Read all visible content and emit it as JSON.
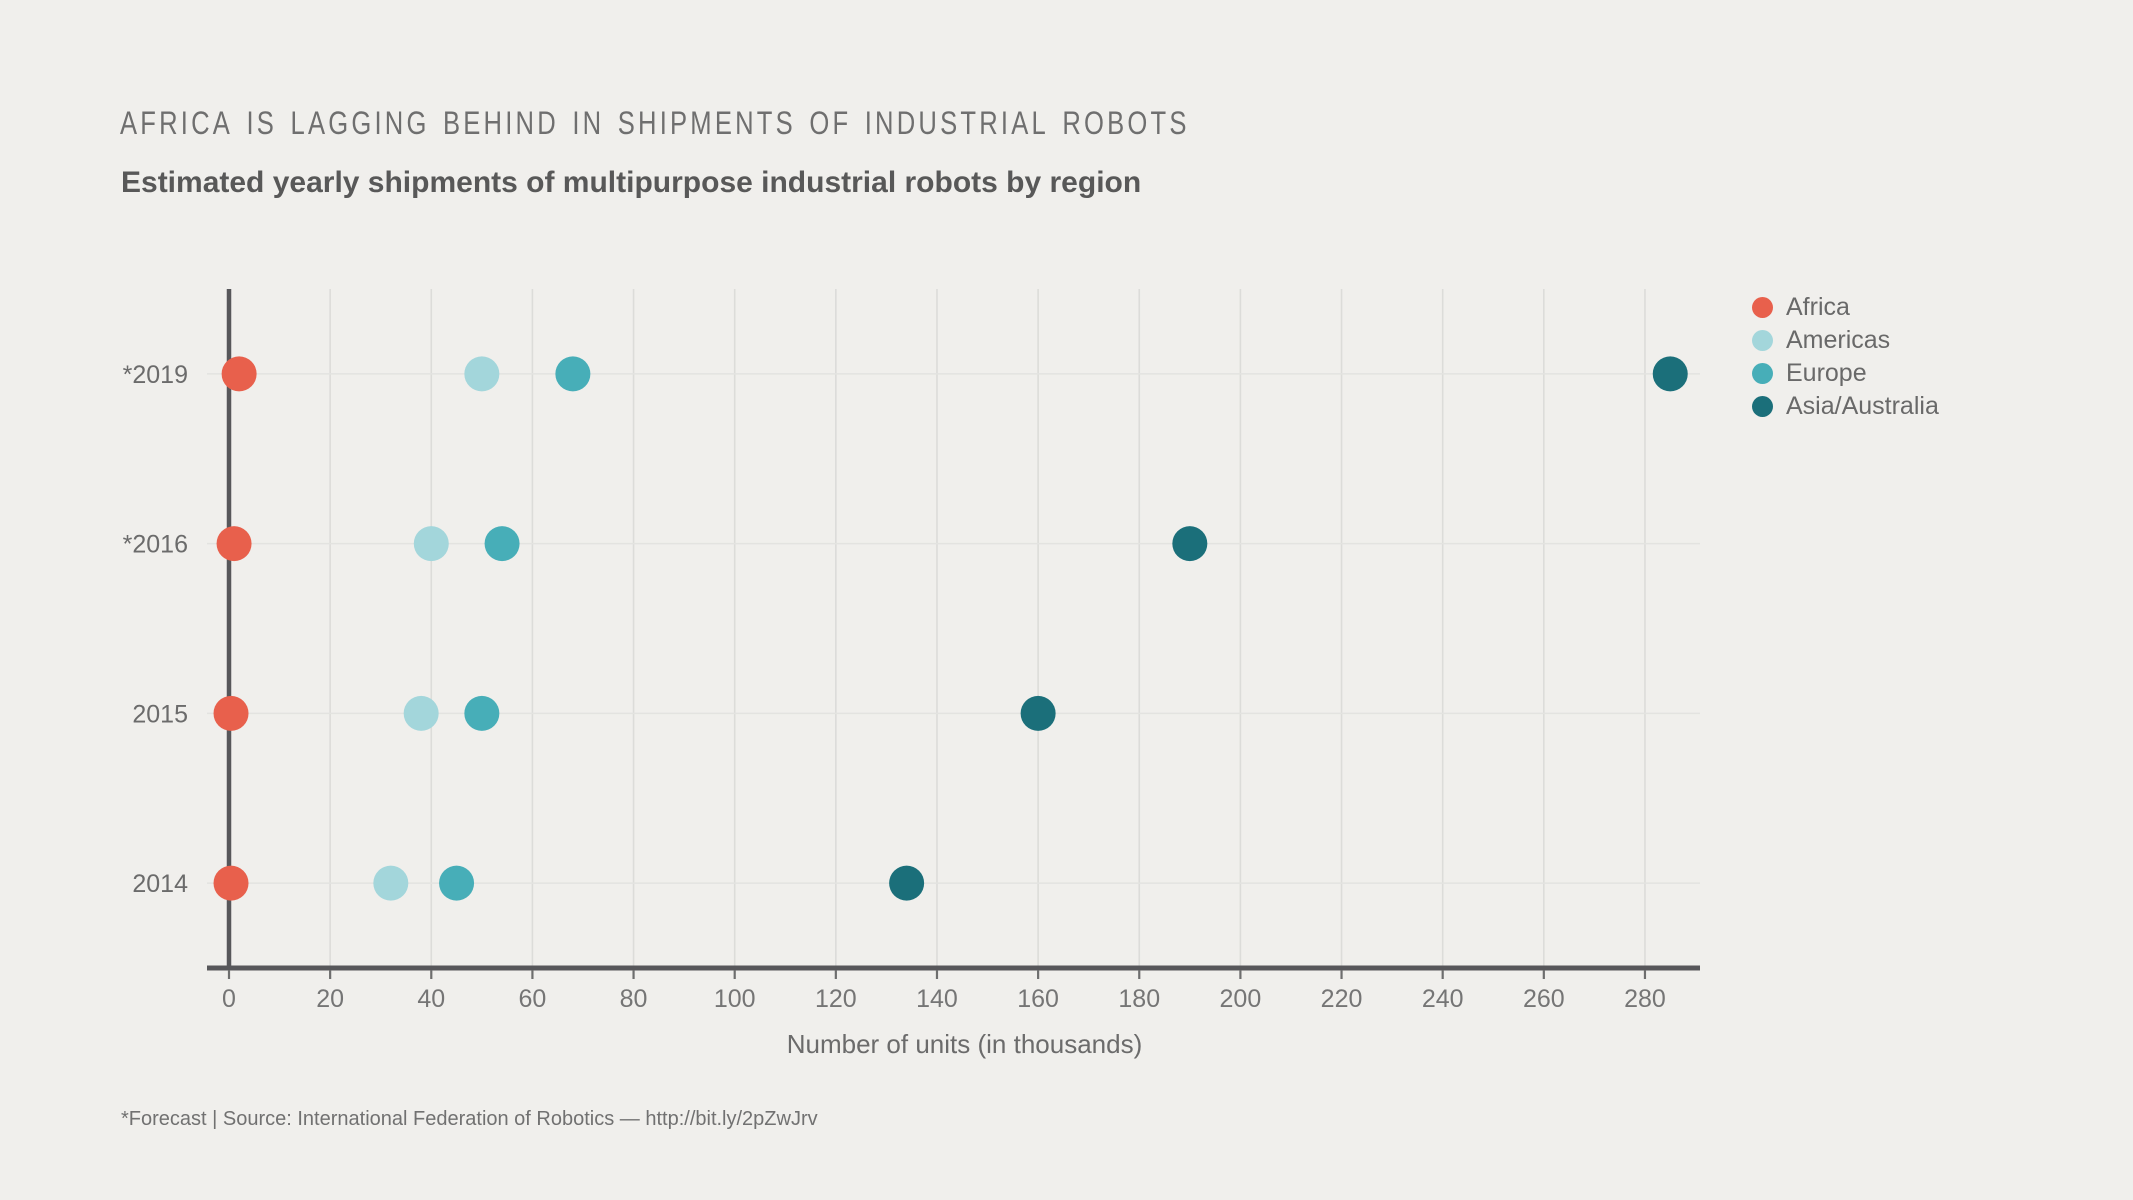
{
  "page": {
    "background": "#f0efec"
  },
  "header": {
    "title": "Africa is lagging behind in shipments of industrial robots",
    "subtitle": "Estimated yearly shipments of multipurpose industrial robots by region"
  },
  "footer": {
    "note": "*Forecast | Source: International Federation of Robotics — http://bit.ly/2pZwJrv"
  },
  "chart_data": {
    "type": "scatter",
    "title": "Africa is lagging behind in shipments of industrial robots",
    "subtitle": "Estimated yearly shipments of multipurpose industrial robots by region",
    "xlabel": "Number of units (in thousands)",
    "ylabel": "",
    "categories_top_to_bottom": [
      "*2019",
      "*2016",
      "2015",
      "2014"
    ],
    "x_ticks": [
      0,
      20,
      40,
      60,
      80,
      100,
      120,
      140,
      160,
      180,
      200,
      220,
      240,
      260,
      280
    ],
    "xlim": [
      0,
      290
    ],
    "grid": true,
    "legend_position": "right",
    "series": [
      {
        "name": "Africa",
        "color": "#e8604c",
        "values": [
          2,
          1,
          0.4,
          0.4
        ]
      },
      {
        "name": "Americas",
        "color": "#a3d6db",
        "values": [
          50,
          40,
          38,
          32
        ]
      },
      {
        "name": "Europe",
        "color": "#47aeb8",
        "values": [
          68,
          54,
          50,
          45
        ]
      },
      {
        "name": "Asia/Australia",
        "color": "#1b6f7a",
        "values": [
          285,
          190,
          160,
          134
        ]
      }
    ],
    "footnote": "*Forecast | Source: International Federation of Robotics — http://bit.ly/2pZwJrv"
  }
}
